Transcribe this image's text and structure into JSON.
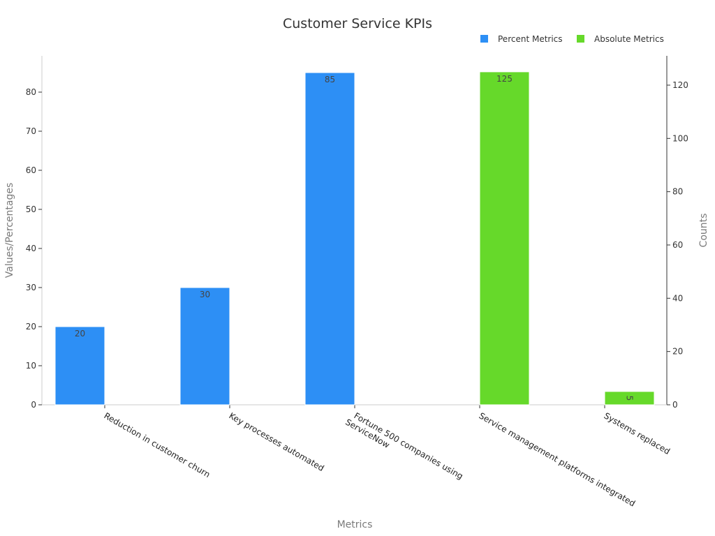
{
  "chart_data": {
    "type": "bar",
    "title": "Customer Service KPIs",
    "xlabel": "Metrics",
    "ylabel": "Values/Percentages",
    "y2label": "Counts",
    "categories": [
      "Reduction in customer churn",
      "Key processes automated",
      "Fortune 500 companies using ServiceNow",
      "Service management platforms integrated",
      "Systems replaced"
    ],
    "category_lines": [
      [
        "Reduction in customer churn"
      ],
      [
        "Key processes automated"
      ],
      [
        "Fortune 500 companies using",
        "ServiceNow"
      ],
      [
        "Service management platforms integrated"
      ],
      [
        "Systems replaced"
      ]
    ],
    "series": [
      {
        "name": "Percent Metrics",
        "axis": "left",
        "color": "#2d8ff5",
        "values": [
          20,
          30,
          85,
          null,
          null
        ]
      },
      {
        "name": "Absolute Metrics",
        "axis": "right",
        "color": "#66d92a",
        "values": [
          null,
          null,
          null,
          125,
          5
        ]
      }
    ],
    "ylim": [
      0,
      89
    ],
    "y_ticks": [
      0,
      10,
      20,
      30,
      40,
      50,
      60,
      70,
      80
    ],
    "y2lim": [
      0,
      131
    ],
    "y2_ticks": [
      0,
      20,
      40,
      60,
      80,
      100,
      120
    ],
    "legend_position": "top-right",
    "grid": false
  }
}
